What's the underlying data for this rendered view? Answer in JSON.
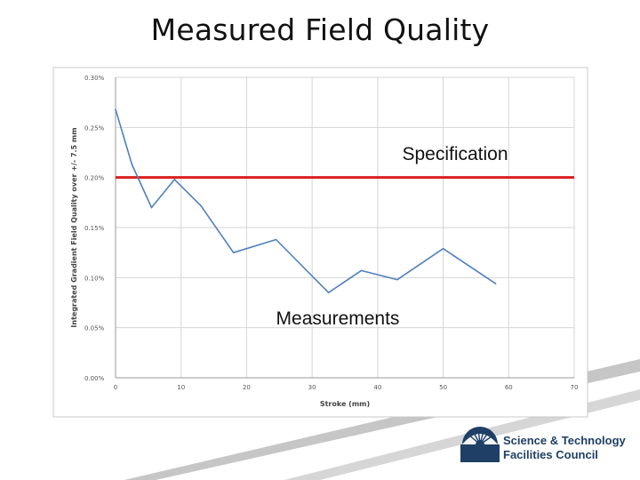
{
  "slide": {
    "title": "Measured Field Quality"
  },
  "logo": {
    "line1": "Science & Technology",
    "line2": "Facilities Council"
  },
  "colors": {
    "measurement_line": "#4f81bd",
    "specification_line": "#dd1f1f",
    "grid": "#d6d6d6",
    "logo_blue": "#1f3f66",
    "decor_gray": "#bdbdbd"
  },
  "chart_data": {
    "type": "line",
    "title": "",
    "xlabel": "Stroke (mm)",
    "ylabel": "Integrated Gradient Field Quality over +/- 7.5 mm",
    "xlim": [
      0,
      70
    ],
    "ylim": [
      0,
      0.3
    ],
    "xticks": [
      0,
      10,
      20,
      30,
      40,
      50,
      60,
      70
    ],
    "yticks": [
      0.0,
      0.05,
      0.1,
      0.15,
      0.2,
      0.25,
      0.3
    ],
    "xtick_labels": [
      "0",
      "10",
      "20",
      "30",
      "40",
      "50",
      "60",
      "70"
    ],
    "ytick_labels": [
      "0.00%",
      "0.05%",
      "0.10%",
      "0.15%",
      "0.20%",
      "0.25%",
      "0.30%"
    ],
    "grid": true,
    "series": [
      {
        "x": [
          0,
          2.5,
          5.5,
          9,
          13,
          18,
          24.5,
          32.5,
          37.5,
          43,
          50,
          58
        ],
        "y": [
          0.268,
          0.213,
          0.17,
          0.198,
          0.172,
          0.125,
          0.138,
          0.085,
          0.107,
          0.098,
          0.129,
          0.094
        ]
      }
    ],
    "specification": {
      "value": 0.2,
      "label": "Specification",
      "x_end": 70
    },
    "annotations": [
      {
        "text": "Measurements"
      }
    ]
  }
}
